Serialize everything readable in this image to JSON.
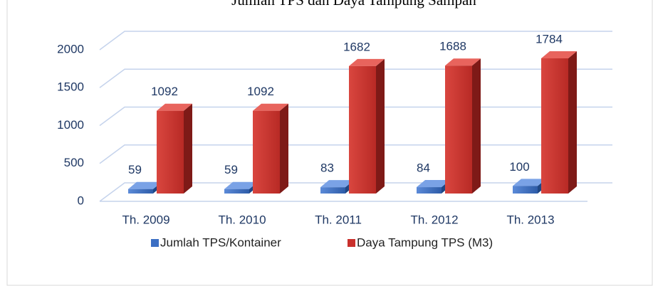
{
  "chart_data": {
    "type": "bar",
    "title": "Jumlah TPS dan Daya Tampung Sampah",
    "categories": [
      "Th. 2009",
      "Th. 2010",
      "Th. 2011",
      "Th. 2012",
      "Th. 2013"
    ],
    "series": [
      {
        "name": "Jumlah TPS/Kontainer",
        "color": "#3c6fc4",
        "values": [
          59,
          59,
          83,
          84,
          100
        ]
      },
      {
        "name": "Daya Tampung TPS (M3)",
        "color": "#c9302c",
        "values": [
          1092,
          1092,
          1682,
          1688,
          1784
        ]
      }
    ],
    "ylim": [
      0,
      2000
    ],
    "yticks": [
      0,
      500,
      1000,
      1500,
      2000
    ],
    "grid": true,
    "legend": "bottom"
  }
}
